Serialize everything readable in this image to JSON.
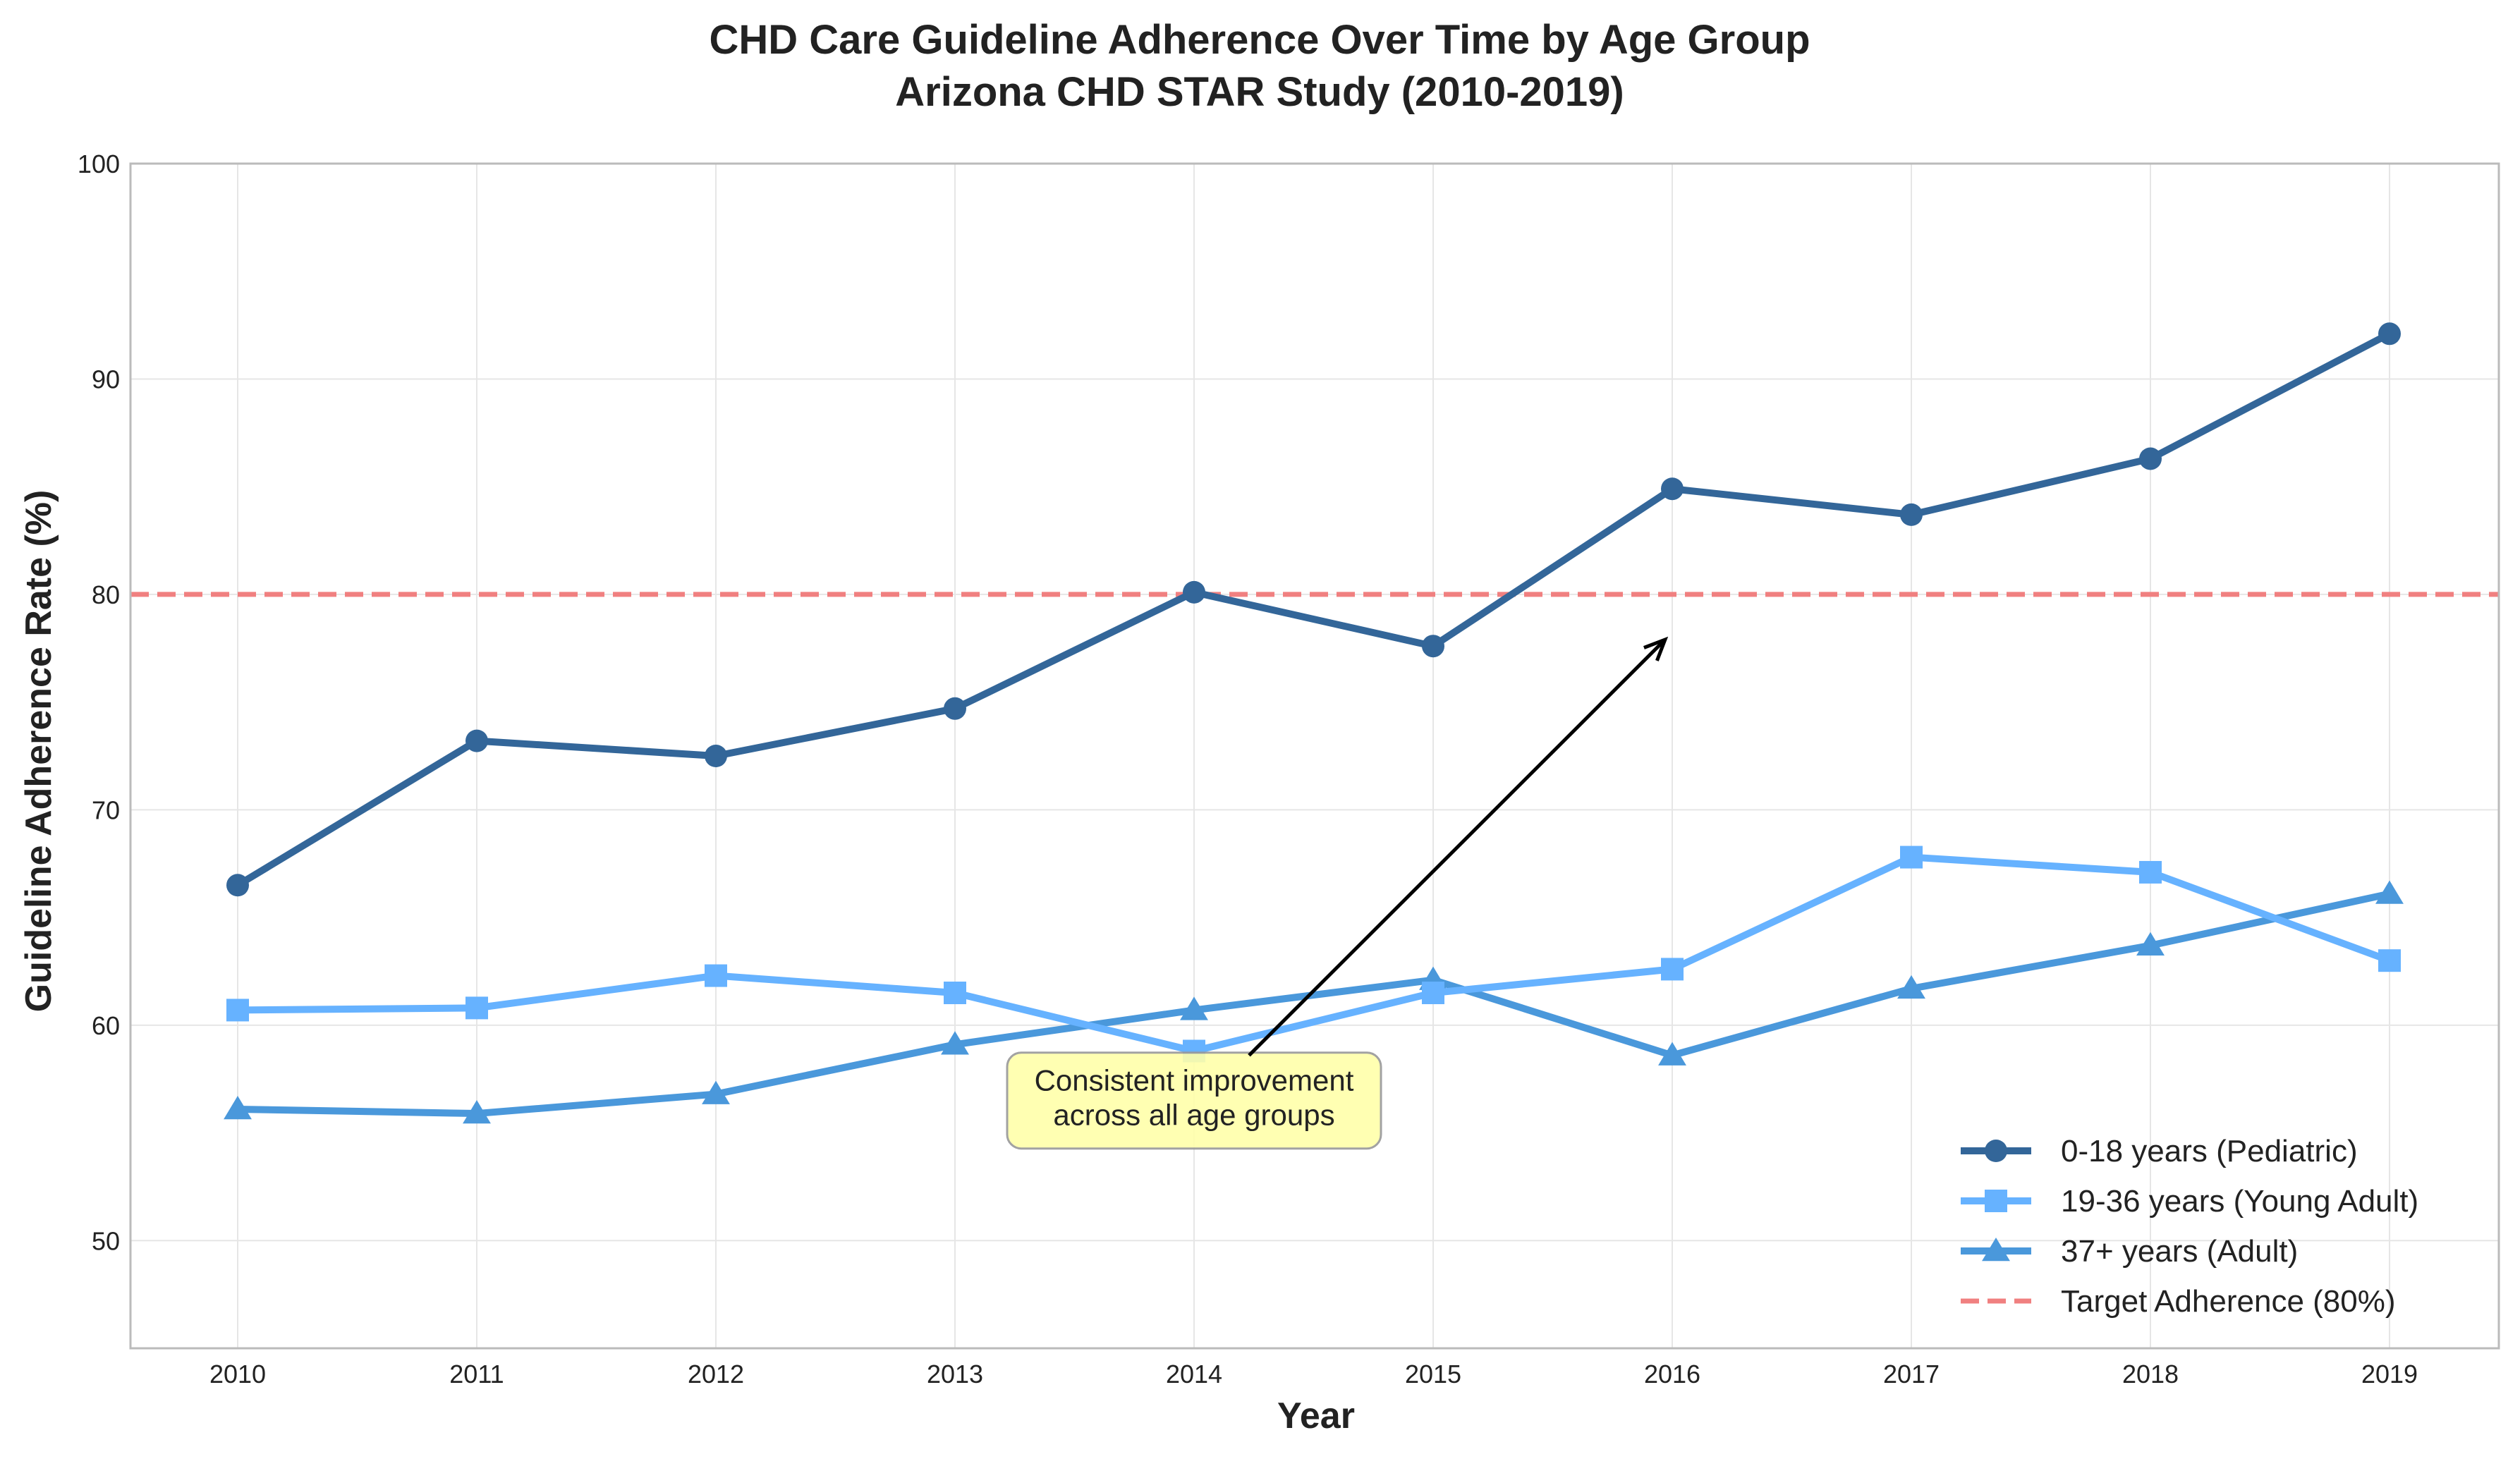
{
  "chart_data": {
    "type": "line",
    "title": "CHD Care Guideline Adherence Over Time by Age Group",
    "subtitle": "Arizona CHD STAR Study (2010-2019)",
    "xlabel": "Year",
    "ylabel": "Guideline Adherence Rate (%)",
    "x": [
      "2010",
      "2011",
      "2012",
      "2013",
      "2014",
      "2015",
      "2016",
      "2017",
      "2018",
      "2019"
    ],
    "ylim": [
      45,
      100
    ],
    "yticks": [
      "50",
      "60",
      "70",
      "80",
      "90",
      "100"
    ],
    "grid": true,
    "legend_position": "lower-right",
    "series": [
      {
        "name": "0-18 years (Pediatric)",
        "marker": "circle",
        "color": "#336699",
        "values": [
          66.5,
          73.2,
          72.5,
          74.7,
          80.1,
          77.6,
          84.9,
          83.7,
          86.3,
          92.1
        ]
      },
      {
        "name": "19-36 years (Young Adult)",
        "marker": "square",
        "color": "#66B2FF",
        "values": [
          60.7,
          60.8,
          62.3,
          61.5,
          58.8,
          61.5,
          62.6,
          67.8,
          67.1,
          63.0
        ]
      },
      {
        "name": "37+ years (Adult)",
        "marker": "triangle",
        "color": "#4A98DB",
        "values": [
          56.1,
          55.9,
          56.8,
          59.1,
          60.7,
          62.1,
          58.6,
          61.7,
          63.7,
          66.1
        ]
      }
    ],
    "reference_line": {
      "label": "Target Adherence (80%)",
      "value": 80,
      "color": "#F08080"
    },
    "annotation": {
      "lines": [
        "Consistent improvement",
        "across all age groups"
      ],
      "text_at": {
        "x": 2014,
        "y": 56.5
      },
      "arrow_from": {
        "x": 2014.23,
        "y": 58.6
      },
      "arrow_to": {
        "x": 2015.97,
        "y": 77.9
      },
      "box_color": "#FFFFAA"
    }
  }
}
